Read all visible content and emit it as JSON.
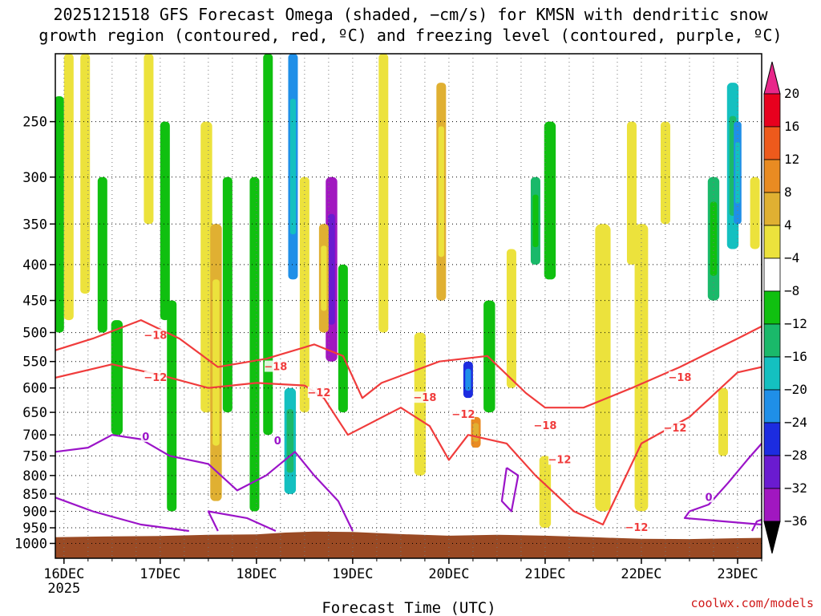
{
  "chart_data": {
    "type": "heatmap",
    "title_lines": [
      "2025121518 GFS Forecast Omega (shaded, −cm/s) for KMSN with dendritic snow",
      "growth region (contoured, red, ºC) and freezing level (contoured, purple, ºC)"
    ],
    "xlabel": "Forecast Time (UTC)",
    "ylabel": "",
    "x_ticks": [
      {
        "label": "16DEC",
        "day": 0,
        "sub": "2025"
      },
      {
        "label": "17DEC",
        "day": 1,
        "sub": ""
      },
      {
        "label": "18DEC",
        "day": 2,
        "sub": ""
      },
      {
        "label": "19DEC",
        "day": 3,
        "sub": ""
      },
      {
        "label": "20DEC",
        "day": 4,
        "sub": ""
      },
      {
        "label": "21DEC",
        "day": 5,
        "sub": ""
      },
      {
        "label": "22DEC",
        "day": 6,
        "sub": ""
      },
      {
        "label": "23DEC",
        "day": 7,
        "sub": ""
      }
    ],
    "xlim_days": [
      -0.09,
      7.25
    ],
    "y_scale": "log-pressure",
    "ylim_hpa": [
      1050,
      200
    ],
    "y_ticks": [
      250,
      300,
      350,
      400,
      450,
      500,
      550,
      600,
      650,
      700,
      750,
      800,
      850,
      900,
      950,
      1000
    ],
    "grid": true,
    "colorbar": {
      "levels": [
        "20",
        "16",
        "12",
        "8",
        "4",
        "−4",
        "−8",
        "−12",
        "−16",
        "−20",
        "−24",
        "−28",
        "−32",
        "−36"
      ],
      "colors": [
        "#e8001e",
        "#ee5a1c",
        "#e98b22",
        "#e0b032",
        "#ece23c",
        "#ffffff",
        "#10c010",
        "#1ab96a",
        "#14c0c0",
        "#1f8fe8",
        "#1c2ce0",
        "#6a1bd0",
        "#a117c0",
        "#a8a8a8"
      ],
      "top_arrow_color": "#e8288a",
      "bottom_arrow_color": "#000000"
    },
    "terrain_color": "#9a4a24",
    "dgz_color": "#f03c3c",
    "freezing_color": "#9b14c8",
    "omega_regions": [
      {
        "day": -0.05,
        "p_top": 230,
        "p_bot": 500,
        "w": 0.05,
        "val": -6
      },
      {
        "day": 0.05,
        "p_top": 200,
        "p_bot": 480,
        "w": 0.05,
        "val": 4
      },
      {
        "day": 0.22,
        "p_top": 200,
        "p_bot": 440,
        "w": 0.05,
        "val": 5
      },
      {
        "day": 0.4,
        "p_top": 300,
        "p_bot": 500,
        "w": 0.05,
        "val": -6
      },
      {
        "day": 0.55,
        "p_top": 480,
        "p_bot": 700,
        "w": 0.06,
        "val": -6
      },
      {
        "day": 0.88,
        "p_top": 200,
        "p_bot": 350,
        "w": 0.05,
        "val": 5
      },
      {
        "day": 1.05,
        "p_top": 250,
        "p_bot": 480,
        "w": 0.05,
        "val": -6
      },
      {
        "day": 1.12,
        "p_top": 450,
        "p_bot": 900,
        "w": 0.05,
        "val": -6
      },
      {
        "day": 1.48,
        "p_top": 250,
        "p_bot": 650,
        "w": 0.06,
        "val": 6
      },
      {
        "day": 1.58,
        "p_top": 350,
        "p_bot": 870,
        "w": 0.06,
        "val": 9
      },
      {
        "day": 1.7,
        "p_top": 300,
        "p_bot": 650,
        "w": 0.05,
        "val": -6
      },
      {
        "day": 1.98,
        "p_top": 300,
        "p_bot": 900,
        "w": 0.05,
        "val": -6
      },
      {
        "day": 2.12,
        "p_top": 200,
        "p_bot": 700,
        "w": 0.05,
        "val": -6
      },
      {
        "day": 2.38,
        "p_top": 200,
        "p_bot": 420,
        "w": 0.05,
        "val": -18
      },
      {
        "day": 2.35,
        "p_top": 600,
        "p_bot": 850,
        "w": 0.06,
        "val": -13
      },
      {
        "day": 2.5,
        "p_top": 300,
        "p_bot": 650,
        "w": 0.05,
        "val": 6
      },
      {
        "day": 2.78,
        "p_top": 300,
        "p_bot": 550,
        "w": 0.06,
        "val": -30
      },
      {
        "day": 2.7,
        "p_top": 350,
        "p_bot": 500,
        "w": 0.05,
        "val": 9
      },
      {
        "day": 2.9,
        "p_top": 400,
        "p_bot": 650,
        "w": 0.05,
        "val": -6
      },
      {
        "day": 3.32,
        "p_top": 200,
        "p_bot": 500,
        "w": 0.05,
        "val": 5
      },
      {
        "day": 3.7,
        "p_top": 500,
        "p_bot": 800,
        "w": 0.06,
        "val": 5
      },
      {
        "day": 3.92,
        "p_top": 220,
        "p_bot": 450,
        "w": 0.05,
        "val": 10
      },
      {
        "day": 4.2,
        "p_top": 550,
        "p_bot": 620,
        "w": 0.05,
        "val": -22
      },
      {
        "day": 4.28,
        "p_top": 660,
        "p_bot": 730,
        "w": 0.05,
        "val": 13
      },
      {
        "day": 4.42,
        "p_top": 450,
        "p_bot": 650,
        "w": 0.06,
        "val": -6
      },
      {
        "day": 4.65,
        "p_top": 380,
        "p_bot": 600,
        "w": 0.05,
        "val": 5
      },
      {
        "day": 4.9,
        "p_top": 300,
        "p_bot": 400,
        "w": 0.05,
        "val": -10
      },
      {
        "day": 5.05,
        "p_top": 250,
        "p_bot": 420,
        "w": 0.06,
        "val": -6
      },
      {
        "day": 5.0,
        "p_top": 750,
        "p_bot": 950,
        "w": 0.06,
        "val": 6
      },
      {
        "day": 5.6,
        "p_top": 350,
        "p_bot": 900,
        "w": 0.08,
        "val": 6
      },
      {
        "day": 5.9,
        "p_top": 250,
        "p_bot": 400,
        "w": 0.05,
        "val": 5
      },
      {
        "day": 6.0,
        "p_top": 350,
        "p_bot": 900,
        "w": 0.07,
        "val": 6
      },
      {
        "day": 6.25,
        "p_top": 250,
        "p_bot": 350,
        "w": 0.05,
        "val": 5
      },
      {
        "day": 6.75,
        "p_top": 300,
        "p_bot": 450,
        "w": 0.06,
        "val": -10
      },
      {
        "day": 6.85,
        "p_top": 600,
        "p_bot": 750,
        "w": 0.05,
        "val": 7
      },
      {
        "day": 6.95,
        "p_top": 220,
        "p_bot": 380,
        "w": 0.06,
        "val": -14
      },
      {
        "day": 7.0,
        "p_top": 250,
        "p_bot": 350,
        "w": 0.04,
        "val": -17
      },
      {
        "day": 7.18,
        "p_top": 300,
        "p_bot": 380,
        "w": 0.05,
        "val": 6
      }
    ],
    "dgz_contours": [
      {
        "label": "−18",
        "points": [
          [
            -0.09,
            530
          ],
          [
            0.3,
            510
          ],
          [
            0.8,
            480
          ],
          [
            1.2,
            510
          ],
          [
            1.6,
            560
          ],
          [
            2.1,
            545
          ],
          [
            2.6,
            520
          ],
          [
            2.9,
            540
          ],
          [
            3.1,
            620
          ],
          [
            3.3,
            590
          ],
          [
            3.9,
            550
          ],
          [
            4.4,
            540
          ],
          [
            4.8,
            610
          ],
          [
            5.0,
            640
          ],
          [
            5.4,
            640
          ],
          [
            5.9,
            600
          ],
          [
            6.4,
            560
          ],
          [
            7.0,
            510
          ],
          [
            7.25,
            490
          ]
        ]
      },
      {
        "label": "−12",
        "points": [
          [
            -0.09,
            580
          ],
          [
            0.5,
            555
          ],
          [
            1.0,
            575
          ],
          [
            1.5,
            600
          ],
          [
            2.0,
            590
          ],
          [
            2.5,
            595
          ],
          [
            2.7,
            620
          ],
          [
            2.95,
            700
          ],
          [
            3.5,
            640
          ],
          [
            3.8,
            680
          ],
          [
            4.0,
            760
          ],
          [
            4.2,
            700
          ],
          [
            4.6,
            720
          ],
          [
            4.9,
            800
          ],
          [
            5.3,
            900
          ],
          [
            5.6,
            940
          ],
          [
            6.0,
            720
          ],
          [
            6.5,
            660
          ],
          [
            7.0,
            570
          ],
          [
            7.25,
            560
          ]
        ]
      }
    ],
    "dgz_labels": [
      {
        "text": "−18",
        "day": 0.95,
        "p": 505
      },
      {
        "text": "−12",
        "day": 0.95,
        "p": 580
      },
      {
        "text": "−18",
        "day": 2.2,
        "p": 560
      },
      {
        "text": "−12",
        "day": 2.65,
        "p": 610
      },
      {
        "text": "−18",
        "day": 3.75,
        "p": 620
      },
      {
        "text": "−12",
        "day": 4.15,
        "p": 655
      },
      {
        "text": "−18",
        "day": 5.0,
        "p": 680
      },
      {
        "text": "−12",
        "day": 5.15,
        "p": 760
      },
      {
        "text": "−12",
        "day": 5.95,
        "p": 950
      },
      {
        "text": "−18",
        "day": 6.4,
        "p": 580
      },
      {
        "text": "−12",
        "day": 6.35,
        "p": 685
      }
    ],
    "freezing_contours": [
      {
        "label": "0",
        "points": [
          [
            -0.09,
            740
          ],
          [
            0.25,
            730
          ],
          [
            0.5,
            700
          ],
          [
            0.8,
            710
          ],
          [
            1.1,
            750
          ],
          [
            1.5,
            770
          ],
          [
            1.8,
            840
          ],
          [
            2.1,
            800
          ],
          [
            2.4,
            740
          ],
          [
            2.6,
            800
          ],
          [
            2.85,
            870
          ],
          [
            3.0,
            960
          ]
        ]
      },
      {
        "label": "0",
        "points": [
          [
            -0.09,
            860
          ],
          [
            0.3,
            900
          ],
          [
            0.8,
            940
          ],
          [
            1.3,
            960
          ]
        ]
      },
      {
        "label": "0",
        "points": [
          [
            1.6,
            960
          ],
          [
            1.5,
            900
          ],
          [
            1.9,
            920
          ],
          [
            2.2,
            960
          ]
        ]
      },
      {
        "label": "0",
        "points": [
          [
            4.6,
            780
          ],
          [
            4.55,
            870
          ],
          [
            4.65,
            900
          ],
          [
            4.72,
            800
          ],
          [
            4.6,
            780
          ]
        ]
      },
      {
        "label": "0",
        "points": [
          [
            7.25,
            720
          ],
          [
            7.1,
            760
          ],
          [
            6.9,
            820
          ],
          [
            6.7,
            880
          ],
          [
            6.5,
            900
          ],
          [
            6.45,
            920
          ],
          [
            7.25,
            940
          ]
        ]
      },
      {
        "label": "0",
        "points": [
          [
            7.15,
            960
          ],
          [
            7.2,
            930
          ],
          [
            7.25,
            925
          ]
        ]
      }
    ],
    "freezing_labels": [
      {
        "text": "0",
        "day": 0.85,
        "p": 705
      },
      {
        "text": "0",
        "day": 2.22,
        "p": 715
      },
      {
        "text": "0",
        "day": 6.7,
        "p": 860
      }
    ],
    "surface_pressure": [
      [
        -0.09,
        980
      ],
      [
        0.5,
        977
      ],
      [
        1.0,
        976
      ],
      [
        1.5,
        972
      ],
      [
        2.0,
        971
      ],
      [
        2.3,
        965
      ],
      [
        2.6,
        962
      ],
      [
        3.0,
        963
      ],
      [
        3.5,
        970
      ],
      [
        4.0,
        975
      ],
      [
        4.5,
        972
      ],
      [
        5.0,
        975
      ],
      [
        5.5,
        980
      ],
      [
        6.0,
        985
      ],
      [
        6.5,
        986
      ],
      [
        7.0,
        983
      ],
      [
        7.25,
        982
      ]
    ]
  },
  "credit": "coolwx.com/models"
}
